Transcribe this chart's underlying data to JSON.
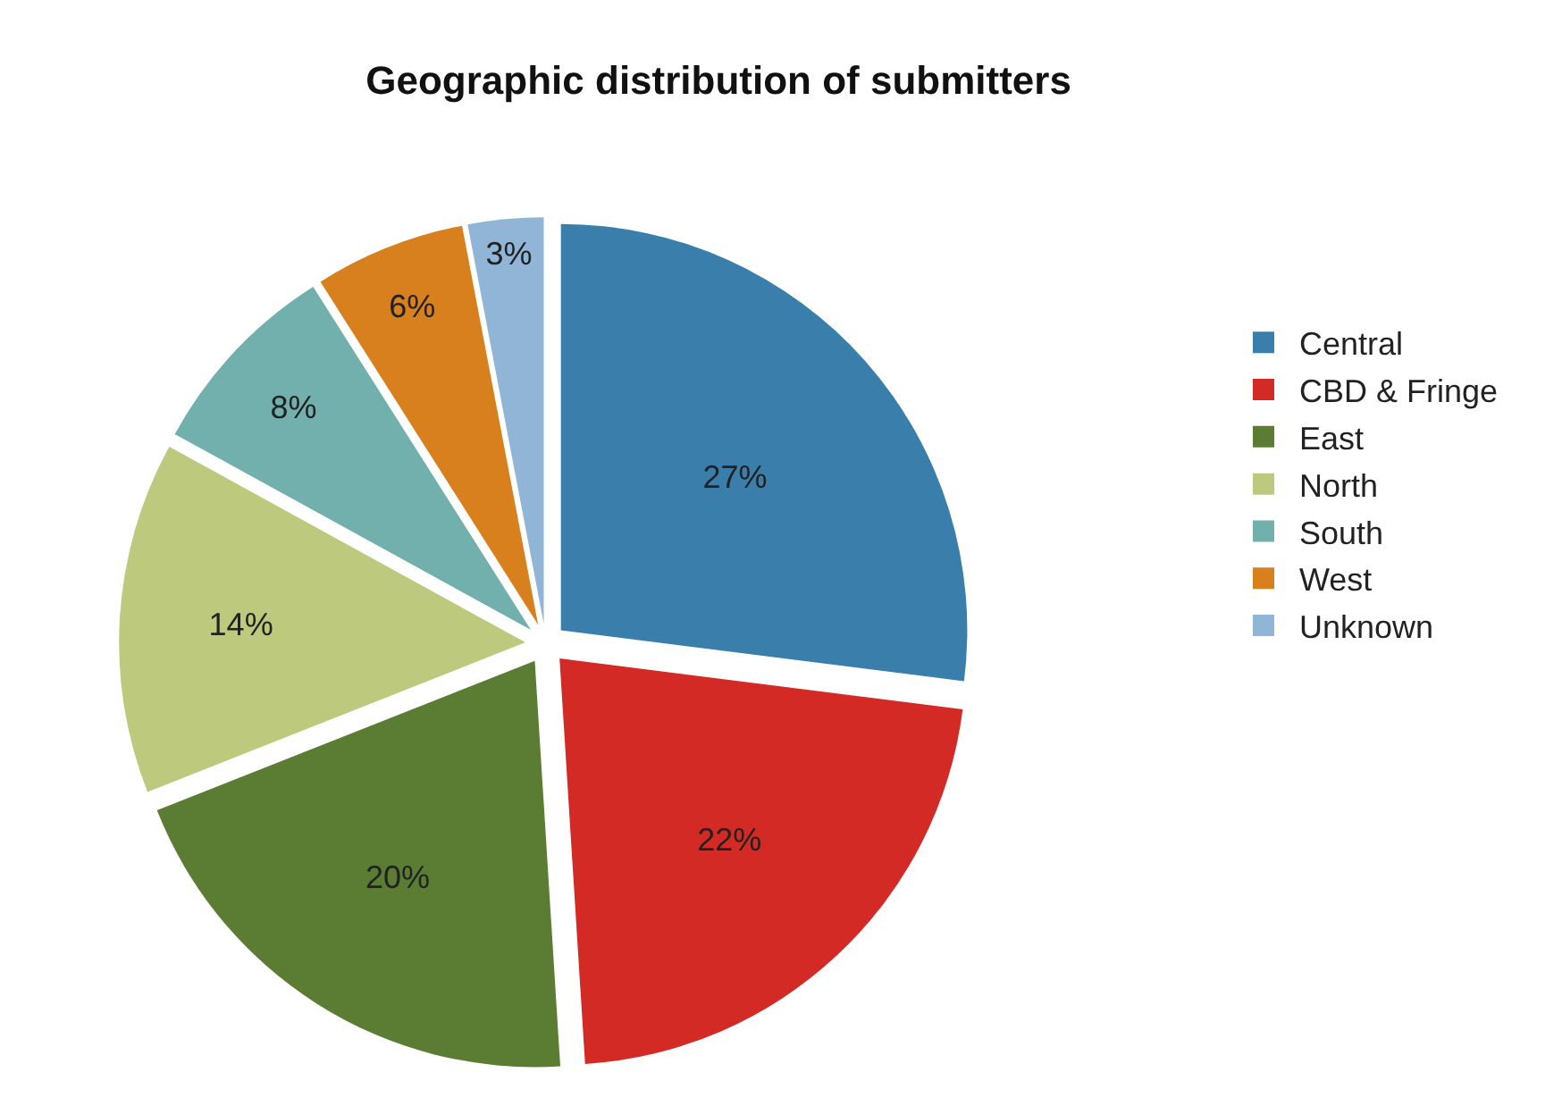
{
  "chart_data": {
    "type": "pie",
    "title": "Geographic distribution of submitters",
    "categories": [
      "Central",
      "CBD & Fringe",
      "East",
      "North",
      "South",
      "West",
      "Unknown"
    ],
    "values": [
      27,
      22,
      20,
      14,
      8,
      6,
      3
    ],
    "value_labels": [
      "27%",
      "22%",
      "20%",
      "14%",
      "8%",
      "6%",
      "3%"
    ],
    "colors": [
      "#3a7fac",
      "#d42a25",
      "#5b7d33",
      "#bdc97c",
      "#72b0ae",
      "#d9801e",
      "#90b5d6"
    ],
    "legend": "right"
  }
}
